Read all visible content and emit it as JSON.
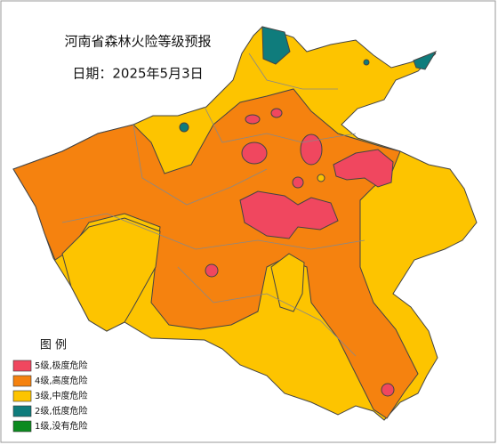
{
  "title": "河南省森林火险等级预报",
  "date": "日期：2025年5月3日",
  "legend": {
    "title": "图 例",
    "items": [
      {
        "label": "5级,极度危险",
        "color": "#f0475f"
      },
      {
        "label": "4级,高度危险",
        "color": "#f5820f"
      },
      {
        "label": "3级,中度危险",
        "color": "#fdc400"
      },
      {
        "label": "2级,低度危险",
        "color": "#0f7c7c"
      },
      {
        "label": "1级,没有危险",
        "color": "#0c8a1f"
      }
    ]
  }
}
